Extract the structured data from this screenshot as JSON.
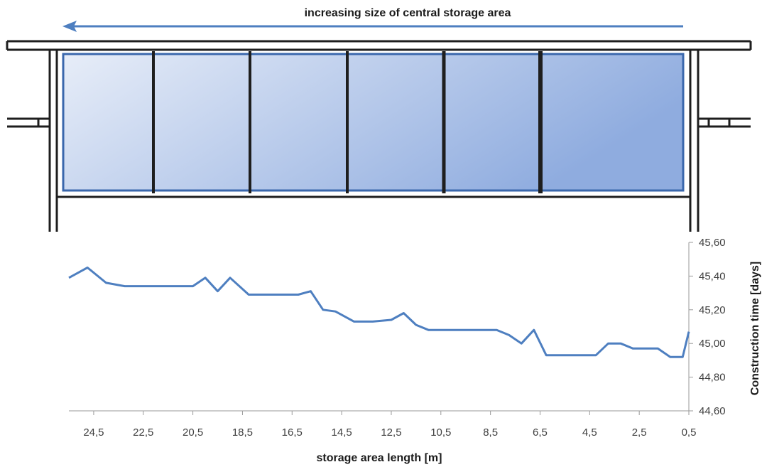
{
  "diagram": {
    "arrow_label": "increasing size of central storage area",
    "colors": {
      "arrow": "#4e7fc0",
      "frame": "#1e1e1e",
      "storage_border": "#3a67ac",
      "gradient_light": "#e7edf8",
      "gradient_dark": "#8facdf"
    }
  },
  "chart_data": {
    "type": "line",
    "xlabel": "storage area length [m]",
    "ylabel": "Construction time [days]",
    "x_axis_reversed": true,
    "xlim": [
      25.5,
      0.5
    ],
    "ylim": [
      44.6,
      45.6
    ],
    "y_ticks": [
      "44,60",
      "44,80",
      "45,00",
      "45,20",
      "45,40",
      "45,60"
    ],
    "y_tick_values": [
      44.6,
      44.8,
      45.0,
      45.2,
      45.4,
      45.6
    ],
    "x_ticks": [
      "24,5",
      "22,5",
      "20,5",
      "18,5",
      "16,5",
      "14,5",
      "12,5",
      "10,5",
      "8,5",
      "6,5",
      "4,5",
      "2,5",
      "0,5"
    ],
    "x_tick_values": [
      24.5,
      22.5,
      20.5,
      18.5,
      16.5,
      14.5,
      12.5,
      10.5,
      8.5,
      6.5,
      4.5,
      2.5,
      0.5
    ],
    "series": [
      {
        "color": "#4e7fc0",
        "x": [
          25.5,
          24.75,
          24.0,
          23.25,
          22.5,
          21.75,
          21.0,
          20.5,
          20.0,
          19.5,
          19.0,
          18.25,
          17.5,
          16.75,
          16.25,
          15.75,
          15.25,
          14.75,
          14.0,
          13.25,
          12.5,
          12.0,
          11.5,
          11.0,
          10.5,
          10.0,
          9.0,
          8.25,
          7.75,
          7.25,
          6.75,
          6.25,
          5.5,
          4.75,
          4.25,
          3.75,
          3.25,
          2.75,
          2.25,
          1.75,
          1.25,
          0.75,
          0.5
        ],
        "y": [
          45.39,
          45.45,
          45.36,
          45.34,
          45.34,
          45.34,
          45.34,
          45.34,
          45.39,
          45.31,
          45.39,
          45.29,
          45.29,
          45.29,
          45.29,
          45.31,
          45.2,
          45.19,
          45.13,
          45.13,
          45.14,
          45.18,
          45.11,
          45.08,
          45.08,
          45.08,
          45.08,
          45.08,
          45.05,
          45.0,
          45.08,
          44.93,
          44.93,
          44.93,
          44.93,
          45.0,
          45.0,
          44.97,
          44.97,
          44.97,
          44.92,
          44.92,
          45.07
        ]
      }
    ],
    "grid": false,
    "legend": "none"
  }
}
